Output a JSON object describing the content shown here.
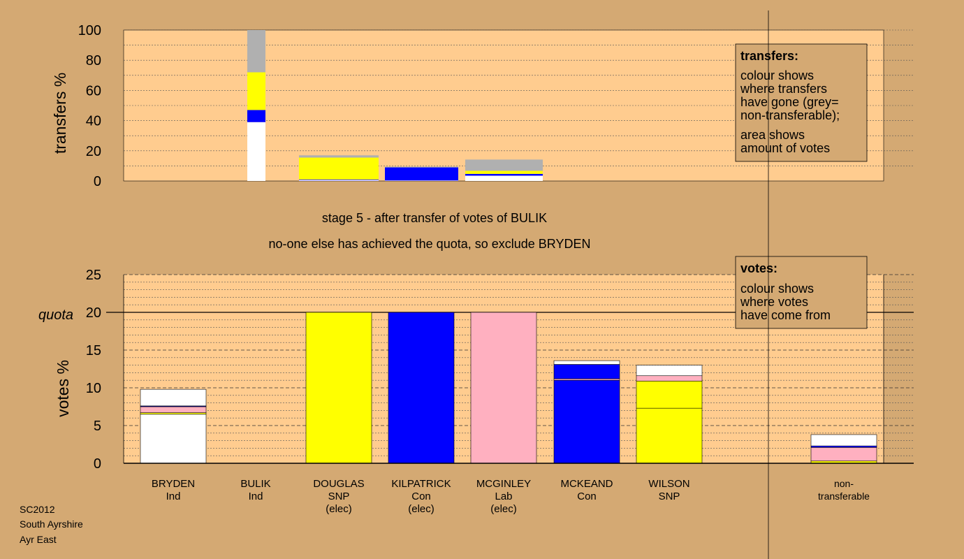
{
  "chart_data": [
    {
      "type": "bar",
      "subtype": "stacked",
      "ylabel": "transfers %",
      "ylim": [
        0,
        100
      ],
      "yticks": [
        0,
        20,
        40,
        60,
        80,
        100
      ],
      "grid": true,
      "legend": {
        "title": "transfers:",
        "lines": [
          "colour shows",
          "where transfers",
          "have gone (grey=",
          "non-transferable);"
        ],
        "lines2": [
          "area shows",
          "amount of votes"
        ]
      },
      "bars": [
        {
          "from": "BULIK",
          "segments": [
            {
              "color": "#ffffff",
              "value": 39
            },
            {
              "color": "#0000ff",
              "value": 8
            },
            {
              "color": "#ffff00",
              "value": 25
            },
            {
              "color": "#b0b0b0",
              "value": 28
            }
          ]
        },
        {
          "from": "DOUGLAS",
          "segments": [
            {
              "color": "#ffffff",
              "value": 0.6
            },
            {
              "color": "#0000ff",
              "value": 0.4
            },
            {
              "color": "#ffff00",
              "value": 14.5
            },
            {
              "color": "#b0b0b0",
              "value": 1.5
            }
          ]
        },
        {
          "from": "KILPATRICK",
          "segments": [
            {
              "color": "#ffffff",
              "value": 0.3
            },
            {
              "color": "#0000ff",
              "value": 8.7
            },
            {
              "color": "#b0b0b0",
              "value": 0.5
            }
          ]
        },
        {
          "from": "MCGINLEY",
          "segments": [
            {
              "color": "#ffffff",
              "value": 3.5
            },
            {
              "color": "#0000ff",
              "value": 1.2
            },
            {
              "color": "#ffff00",
              "value": 2
            },
            {
              "color": "#b0b0b0",
              "value": 7.5
            }
          ]
        }
      ]
    },
    {
      "type": "bar",
      "subtype": "stacked",
      "ylabel": "votes %",
      "ylim": [
        0,
        25
      ],
      "yticks": [
        0,
        5,
        10,
        15,
        20,
        25
      ],
      "quota": 20,
      "quota_label": "quota",
      "grid": true,
      "legend": {
        "title": "votes:",
        "lines": [
          "colour shows",
          "where votes",
          "have come from"
        ]
      },
      "categories": [
        {
          "name": "BRYDEN",
          "party": "Ind",
          "status": ""
        },
        {
          "name": "BULIK",
          "party": "Ind",
          "status": ""
        },
        {
          "name": "DOUGLAS",
          "party": "SNP",
          "status": "(elec)"
        },
        {
          "name": "KILPATRICK",
          "party": "Con",
          "status": "(elec)"
        },
        {
          "name": "MCGINLEY",
          "party": "Lab",
          "status": "(elec)"
        },
        {
          "name": "MCKEAND",
          "party": "Con",
          "status": ""
        },
        {
          "name": "WILSON",
          "party": "SNP",
          "status": ""
        },
        {
          "name": "non-",
          "party": "transferable",
          "status": ""
        }
      ],
      "stacks": [
        [
          {
            "color": "#ffffff",
            "value": 6.5
          },
          {
            "color": "#ffff00",
            "value": 0.2
          },
          {
            "color": "#ffb0c0",
            "value": 0.8
          },
          {
            "color": "#0000ff",
            "value": 0.1
          },
          {
            "color": "#ffffff",
            "value": 2.2
          }
        ],
        [],
        [
          {
            "color": "#ffff00",
            "value": 20
          }
        ],
        [
          {
            "color": "#0000ff",
            "value": 20
          }
        ],
        [
          {
            "color": "#ffb0c0",
            "value": 20
          }
        ],
        [
          {
            "color": "#0000ff",
            "value": 11
          },
          {
            "color": "#ffb0c0",
            "value": 0.2
          },
          {
            "color": "#0000ff",
            "value": 1.9
          },
          {
            "color": "#ffffff",
            "value": 0.5
          }
        ],
        [
          {
            "color": "#ffff00",
            "value": 7.3
          },
          {
            "color": "#ffff00",
            "value": 3.6
          },
          {
            "color": "#ffb0c0",
            "value": 0.7
          },
          {
            "color": "#ffffff",
            "value": 1.4
          }
        ],
        [
          {
            "color": "#ffff00",
            "value": 0.3
          },
          {
            "color": "#ffb0c0",
            "value": 1.8
          },
          {
            "color": "#0000ff",
            "value": 0.2
          },
          {
            "color": "#ffffff",
            "value": 1.5
          }
        ]
      ]
    }
  ],
  "stage_text": "stage 5 - after transfer of votes of BULIK",
  "exclude_text": "no-one else has achieved the quota, so exclude BRYDEN",
  "footer": {
    "line1": "SC2012",
    "line2": "South Ayrshire",
    "line3": "Ayr East"
  },
  "colors": {
    "background": "#d4a973",
    "plot_area": "#ffcc8f",
    "legend_box": "#d4a973"
  }
}
